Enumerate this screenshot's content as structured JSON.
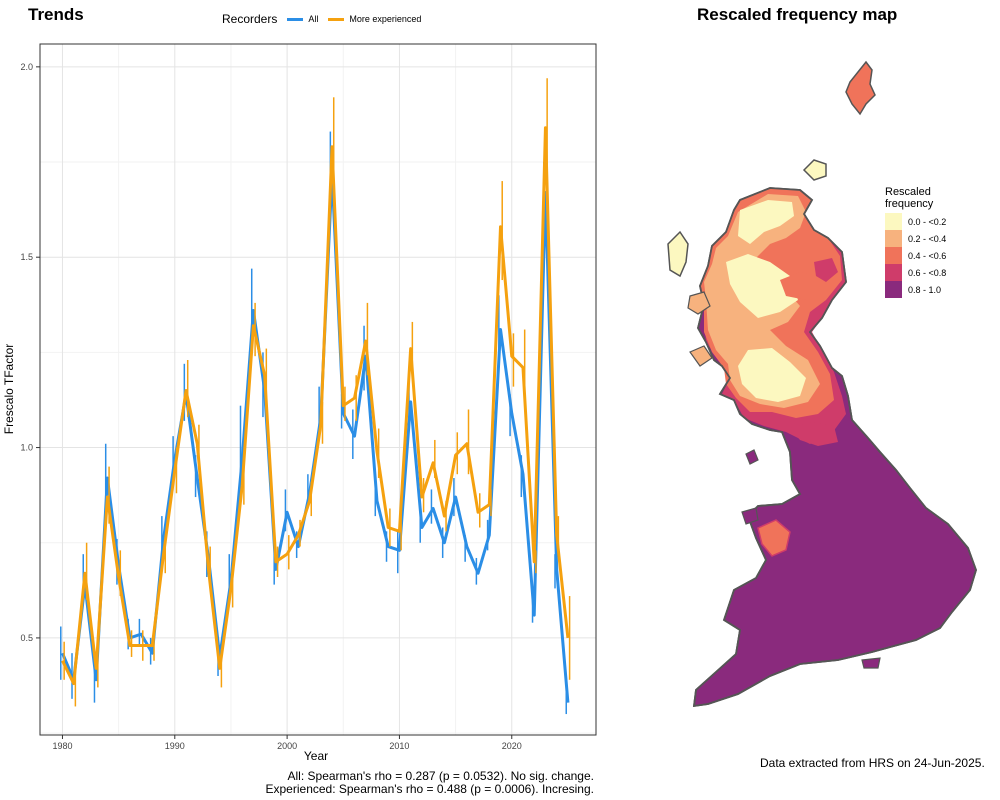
{
  "trends": {
    "title": "Trends",
    "legend_title": "Recorders",
    "caption_all": "All: Spearman's rho = 0.287 (p = 0.0532). No sig. change.",
    "caption_experienced": "Experienced: Spearman's rho = 0.488 (p = 0.0006). Incresing."
  },
  "map": {
    "title": "Rescaled frequency map",
    "legend_title": "Rescaled frequency",
    "legend_items": [
      {
        "label": "0.0 - <0.2",
        "color": "#fcf8c0"
      },
      {
        "label": "0.2 - <0.4",
        "color": "#f7b27e"
      },
      {
        "label": "0.4 - <0.6",
        "color": "#f0735a"
      },
      {
        "label": "0.6 - <0.8",
        "color": "#cf3c6a"
      },
      {
        "label": "0.8 - 1.0",
        "color": "#8a2a7d"
      }
    ],
    "data_source": "Data extracted from HRS on 24-Jun-2025."
  },
  "chart_data": {
    "type": "line",
    "xlabel": "Year",
    "ylabel": "Frescalo TFactor",
    "xlim": [
      1978,
      2027.5
    ],
    "ylim": [
      0.245,
      2.06
    ],
    "x_ticks": [
      1980,
      1990,
      2000,
      2010,
      2020
    ],
    "y_ticks": [
      0.5,
      1.0,
      1.5,
      2.0
    ],
    "grid": true,
    "legend_position": "top",
    "x": [
      1980,
      1981,
      1982,
      1983,
      1984,
      1985,
      1986,
      1987,
      1988,
      1989,
      1990,
      1991,
      1992,
      1993,
      1994,
      1995,
      1996,
      1997,
      1998,
      1999,
      2000,
      2001,
      2002,
      2003,
      2004,
      2005,
      2006,
      2007,
      2008,
      2009,
      2010,
      2011,
      2012,
      2013,
      2014,
      2015,
      2016,
      2017,
      2018,
      2019,
      2020,
      2021,
      2022,
      2023,
      2024,
      2025
    ],
    "series": [
      {
        "name": "All",
        "color": "#2b8ee6",
        "values": [
          0.46,
          0.39,
          0.64,
          0.39,
          0.92,
          0.69,
          0.5,
          0.51,
          0.46,
          0.76,
          0.97,
          1.14,
          0.92,
          0.71,
          0.45,
          0.65,
          0.97,
          1.36,
          1.15,
          0.68,
          0.83,
          0.74,
          0.88,
          1.08,
          1.72,
          1.09,
          1.03,
          1.24,
          0.86,
          0.74,
          0.73,
          1.12,
          0.79,
          0.84,
          0.75,
          0.87,
          0.74,
          0.67,
          0.77,
          1.31,
          1.09,
          0.93,
          0.56,
          1.67,
          0.68,
          0.33
        ],
        "lower": [
          0.39,
          0.34,
          0.6,
          0.33,
          0.85,
          0.64,
          0.47,
          0.48,
          0.43,
          0.71,
          0.91,
          1.07,
          0.87,
          0.66,
          0.4,
          0.59,
          0.91,
          1.26,
          1.08,
          0.64,
          0.78,
          0.71,
          0.84,
          1.03,
          1.61,
          1.05,
          0.97,
          1.15,
          0.82,
          0.7,
          0.67,
          1.05,
          0.75,
          0.8,
          0.71,
          0.82,
          0.7,
          0.64,
          0.73,
          1.21,
          1.03,
          0.87,
          0.54,
          1.46,
          0.63,
          0.3
        ],
        "upper": [
          0.53,
          0.46,
          0.72,
          0.44,
          1.01,
          0.76,
          0.55,
          0.55,
          0.5,
          0.82,
          1.03,
          1.22,
          0.98,
          0.78,
          0.5,
          0.72,
          1.11,
          1.47,
          1.25,
          0.72,
          0.89,
          0.78,
          0.93,
          1.16,
          1.83,
          1.14,
          1.1,
          1.32,
          0.92,
          0.78,
          0.78,
          1.18,
          0.85,
          0.89,
          0.79,
          0.92,
          0.77,
          0.71,
          0.81,
          1.4,
          1.14,
          0.98,
          0.6,
          1.75,
          0.72,
          0.37
        ]
      },
      {
        "name": "More experienced",
        "color": "#f5a10f",
        "values": [
          0.44,
          0.38,
          0.67,
          0.42,
          0.87,
          0.66,
          0.48,
          0.48,
          0.48,
          0.72,
          0.94,
          1.15,
          1.01,
          0.68,
          0.42,
          0.63,
          0.9,
          1.32,
          1.19,
          0.7,
          0.72,
          0.77,
          0.86,
          1.06,
          1.79,
          1.11,
          1.13,
          1.28,
          0.99,
          0.79,
          0.78,
          1.26,
          0.87,
          0.96,
          0.82,
          0.98,
          1.01,
          0.83,
          0.85,
          1.58,
          1.24,
          1.21,
          0.7,
          1.84,
          0.77,
          0.5
        ],
        "lower": [
          0.39,
          0.32,
          0.6,
          0.37,
          0.8,
          0.61,
          0.45,
          0.44,
          0.44,
          0.67,
          0.88,
          1.08,
          0.96,
          0.64,
          0.37,
          0.58,
          0.85,
          1.24,
          1.12,
          0.66,
          0.68,
          0.74,
          0.82,
          1.01,
          1.68,
          1.07,
          1.07,
          1.19,
          0.92,
          0.74,
          0.73,
          1.19,
          0.83,
          0.92,
          0.78,
          0.93,
          0.93,
          0.79,
          0.82,
          1.44,
          1.16,
          1.12,
          0.67,
          1.62,
          0.73,
          0.39
        ],
        "upper": [
          0.49,
          0.43,
          0.75,
          0.47,
          0.95,
          0.73,
          0.52,
          0.52,
          0.52,
          0.77,
          1.0,
          1.23,
          1.06,
          0.74,
          0.47,
          0.69,
          0.97,
          1.38,
          1.26,
          0.74,
          0.77,
          0.81,
          0.91,
          1.12,
          1.92,
          1.16,
          1.19,
          1.38,
          1.05,
          0.84,
          0.83,
          1.33,
          0.92,
          1.02,
          0.86,
          1.04,
          1.1,
          0.88,
          0.89,
          1.7,
          1.3,
          1.31,
          0.73,
          1.97,
          0.82,
          0.61
        ]
      }
    ]
  }
}
